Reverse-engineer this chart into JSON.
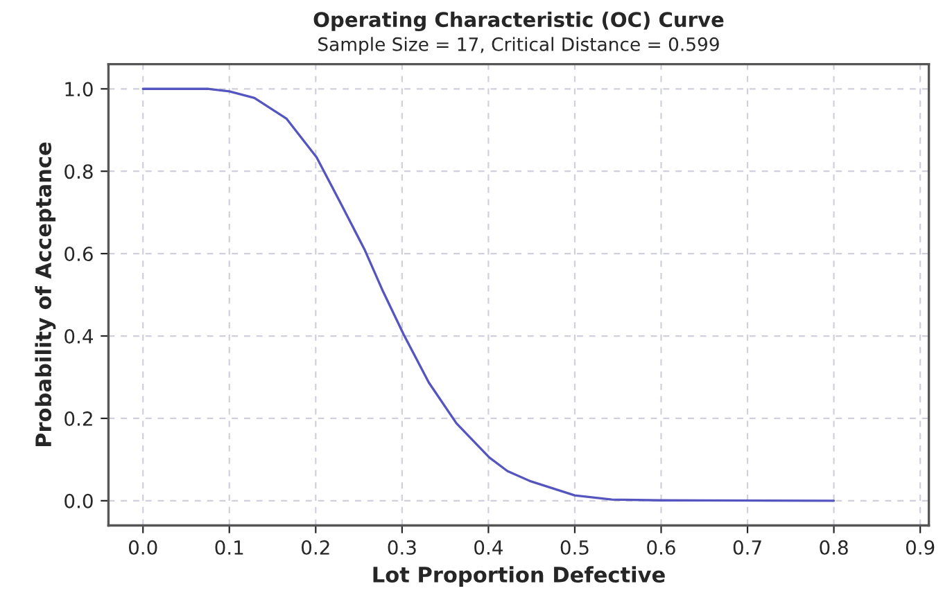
{
  "chart_data": {
    "type": "line",
    "title": "Operating Characteristic (OC) Curve",
    "subtitle": "Sample Size = 17, Critical Distance = 0.599",
    "xlabel": "Lot Proportion Defective",
    "ylabel": "Probability of Acceptance",
    "series": [
      {
        "color": "#5555c0",
        "x": [
          0.0,
          0.076,
          0.1,
          0.129,
          0.166,
          0.201,
          0.23,
          0.257,
          0.278,
          0.302,
          0.331,
          0.363,
          0.401,
          0.422,
          0.448,
          0.5,
          0.543,
          0.6,
          0.8
        ],
        "values": [
          1.0,
          1.0,
          0.994,
          0.978,
          0.928,
          0.834,
          0.718,
          0.608,
          0.508,
          0.403,
          0.287,
          0.188,
          0.105,
          0.072,
          0.048,
          0.013,
          0.003,
          0.001,
          0.0
        ]
      }
    ],
    "xlim": [
      -0.04,
      0.91
    ],
    "ylim": [
      -0.06,
      1.06
    ],
    "xticks": [
      {
        "value": 0,
        "label": "0.0"
      },
      0.1,
      0.2,
      0.3,
      0.4,
      0.5,
      0.6,
      0.7,
      0.8,
      0.9
    ],
    "yticks": [
      {
        "value": 0,
        "label": "0.0"
      },
      0.2,
      0.4,
      0.6,
      0.8,
      {
        "value": 1,
        "label": "1.0"
      }
    ],
    "grid": true,
    "line_style": "solid"
  }
}
